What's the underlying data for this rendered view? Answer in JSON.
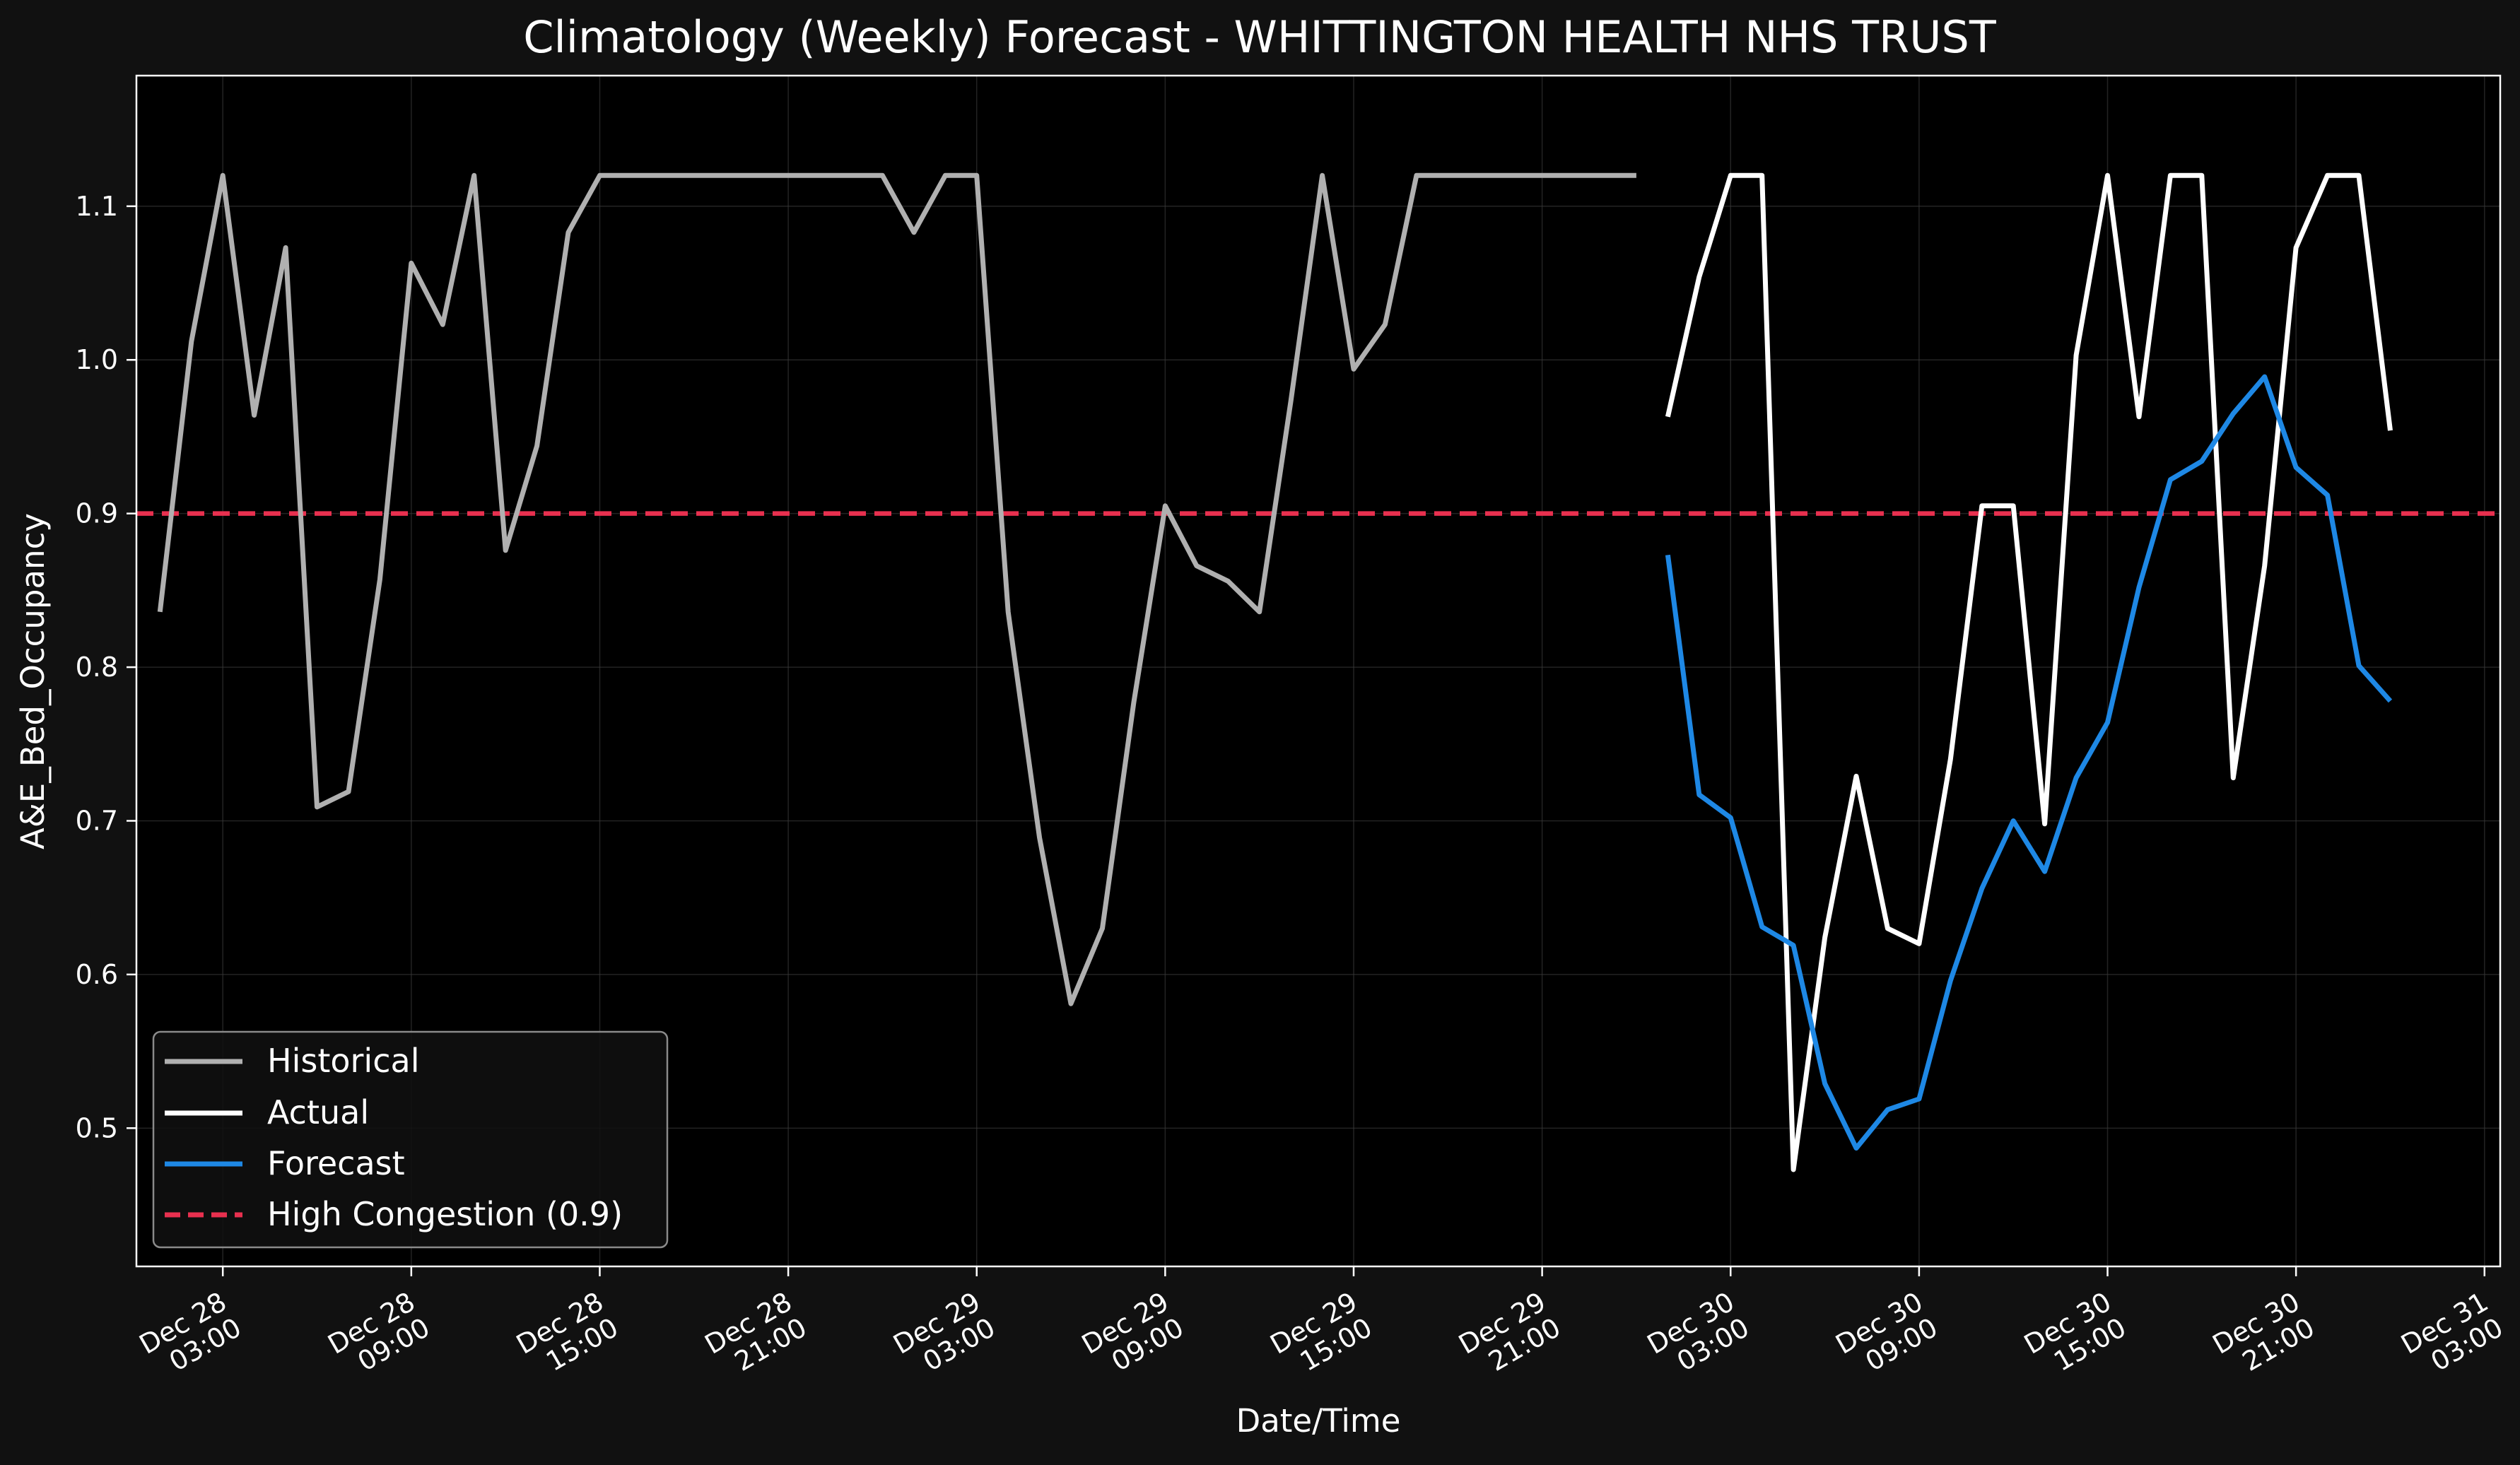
{
  "chart_data": {
    "type": "line",
    "title": "Climatology (Weekly) Forecast - WHITTINGTON HEALTH NHS TRUST",
    "xlabel": "Date/Time",
    "ylabel": "A&E_Bed_Occupancy",
    "ylim": [
      0.41,
      1.185
    ],
    "xlim": [
      "2025-12-28T00:15",
      "2025-12-31T03:30"
    ],
    "grid": true,
    "legend_position": "lower-left",
    "x_ticks": [
      {
        "at": "2025-12-28T03:00",
        "line1": "Dec 28",
        "line2": "03:00"
      },
      {
        "at": "2025-12-28T09:00",
        "line1": "Dec 28",
        "line2": "09:00"
      },
      {
        "at": "2025-12-28T15:00",
        "line1": "Dec 28",
        "line2": "15:00"
      },
      {
        "at": "2025-12-28T21:00",
        "line1": "Dec 28",
        "line2": "21:00"
      },
      {
        "at": "2025-12-29T03:00",
        "line1": "Dec 29",
        "line2": "03:00"
      },
      {
        "at": "2025-12-29T09:00",
        "line1": "Dec 29",
        "line2": "09:00"
      },
      {
        "at": "2025-12-29T15:00",
        "line1": "Dec 29",
        "line2": "15:00"
      },
      {
        "at": "2025-12-29T21:00",
        "line1": "Dec 29",
        "line2": "21:00"
      },
      {
        "at": "2025-12-30T03:00",
        "line1": "Dec 30",
        "line2": "03:00"
      },
      {
        "at": "2025-12-30T09:00",
        "line1": "Dec 30",
        "line2": "09:00"
      },
      {
        "at": "2025-12-30T15:00",
        "line1": "Dec 30",
        "line2": "15:00"
      },
      {
        "at": "2025-12-30T21:00",
        "line1": "Dec 30",
        "line2": "21:00"
      },
      {
        "at": "2025-12-31T03:00",
        "line1": "Dec 31",
        "line2": "03:00"
      }
    ],
    "y_ticks": [
      "0.5",
      "0.6",
      "0.7",
      "0.8",
      "0.9",
      "1.0",
      "1.1"
    ],
    "threshold": {
      "name": "High Congestion (0.9)",
      "value": 0.9,
      "color": "#e8304f",
      "style": "dashed"
    },
    "series": [
      {
        "name": "Historical",
        "color": "#b0b0b0",
        "x": [
          "2025-12-28T01:00",
          "2025-12-28T02:00",
          "2025-12-28T03:00",
          "2025-12-28T04:00",
          "2025-12-28T05:00",
          "2025-12-28T06:00",
          "2025-12-28T07:00",
          "2025-12-28T08:00",
          "2025-12-28T09:00",
          "2025-12-28T10:00",
          "2025-12-28T11:00",
          "2025-12-28T12:00",
          "2025-12-28T13:00",
          "2025-12-28T14:00",
          "2025-12-28T15:00",
          "2025-12-28T16:00",
          "2025-12-28T17:00",
          "2025-12-28T18:00",
          "2025-12-28T19:00",
          "2025-12-28T20:00",
          "2025-12-28T21:00",
          "2025-12-28T22:00",
          "2025-12-28T23:00",
          "2025-12-29T00:00",
          "2025-12-29T01:00",
          "2025-12-29T02:00",
          "2025-12-29T03:00",
          "2025-12-29T04:00",
          "2025-12-29T05:00",
          "2025-12-29T06:00",
          "2025-12-29T07:00",
          "2025-12-29T08:00",
          "2025-12-29T09:00",
          "2025-12-29T10:00",
          "2025-12-29T11:00",
          "2025-12-29T12:00",
          "2025-12-29T13:00",
          "2025-12-29T14:00",
          "2025-12-29T15:00",
          "2025-12-29T16:00",
          "2025-12-29T17:00",
          "2025-12-29T18:00",
          "2025-12-29T19:00",
          "2025-12-29T20:00",
          "2025-12-29T21:00",
          "2025-12-29T22:00",
          "2025-12-29T23:00",
          "2025-12-30T00:00"
        ],
        "values": [
          0.836,
          1.012,
          1.12,
          0.964,
          1.073,
          0.709,
          0.719,
          0.857,
          1.063,
          1.023,
          1.12,
          0.876,
          0.944,
          1.083,
          1.12,
          1.12,
          1.12,
          1.12,
          1.12,
          1.12,
          1.12,
          1.12,
          1.12,
          1.12,
          1.083,
          1.12,
          1.12,
          0.836,
          0.689,
          0.581,
          0.63,
          0.777,
          0.905,
          0.866,
          0.856,
          0.836,
          0.973,
          1.12,
          0.994,
          1.023,
          1.12,
          1.12,
          1.12,
          1.12,
          1.12,
          1.12,
          1.12,
          1.12
        ]
      },
      {
        "name": "Actual",
        "color": "#ffffff",
        "x": [
          "2025-12-30T01:00",
          "2025-12-30T02:00",
          "2025-12-30T03:00",
          "2025-12-30T04:00",
          "2025-12-30T05:00",
          "2025-12-30T06:00",
          "2025-12-30T07:00",
          "2025-12-30T08:00",
          "2025-12-30T09:00",
          "2025-12-30T10:00",
          "2025-12-30T11:00",
          "2025-12-30T12:00",
          "2025-12-30T13:00",
          "2025-12-30T14:00",
          "2025-12-30T15:00",
          "2025-12-30T16:00",
          "2025-12-30T17:00",
          "2025-12-30T18:00",
          "2025-12-30T19:00",
          "2025-12-30T20:00",
          "2025-12-30T21:00",
          "2025-12-30T22:00",
          "2025-12-30T23:00",
          "2025-12-31T00:00"
        ],
        "values": [
          0.963,
          1.054,
          1.12,
          1.12,
          0.473,
          0.624,
          0.729,
          0.63,
          0.62,
          0.74,
          0.905,
          0.905,
          0.698,
          1.003,
          1.12,
          0.963,
          1.12,
          1.12,
          0.728,
          0.866,
          1.073,
          1.12,
          1.12,
          0.954
        ]
      },
      {
        "name": "Forecast",
        "color": "#1e88e5",
        "x": [
          "2025-12-30T01:00",
          "2025-12-30T02:00",
          "2025-12-30T03:00",
          "2025-12-30T04:00",
          "2025-12-30T05:00",
          "2025-12-30T06:00",
          "2025-12-30T07:00",
          "2025-12-30T08:00",
          "2025-12-30T09:00",
          "2025-12-30T10:00",
          "2025-12-30T11:00",
          "2025-12-30T12:00",
          "2025-12-30T13:00",
          "2025-12-30T14:00",
          "2025-12-30T15:00",
          "2025-12-30T16:00",
          "2025-12-30T17:00",
          "2025-12-30T18:00",
          "2025-12-30T19:00",
          "2025-12-30T20:00",
          "2025-12-30T21:00",
          "2025-12-30T22:00",
          "2025-12-30T23:00",
          "2025-12-31T00:00"
        ],
        "values": [
          0.873,
          0.717,
          0.702,
          0.631,
          0.619,
          0.529,
          0.487,
          0.512,
          0.519,
          0.596,
          0.656,
          0.7,
          0.667,
          0.728,
          0.764,
          0.852,
          0.922,
          0.934,
          0.965,
          0.989,
          0.93,
          0.912,
          0.801,
          0.778
        ]
      }
    ]
  }
}
